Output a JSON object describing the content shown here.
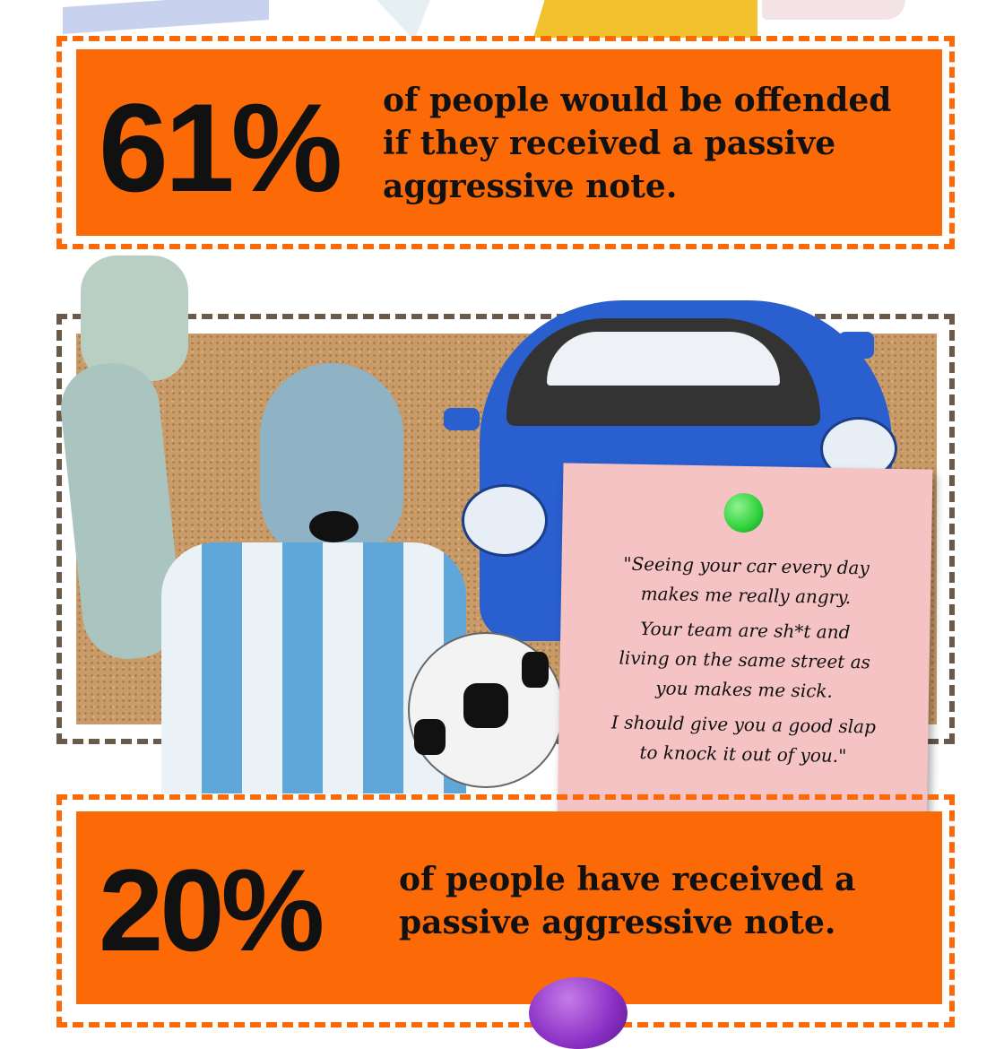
{
  "stats": [
    {
      "percent": "61%",
      "text_lines": [
        "of people would be offended",
        "if they received a passive",
        "aggressive note."
      ]
    },
    {
      "percent": "20%",
      "text_lines": [
        "of people have received a",
        "passive aggressive note."
      ]
    }
  ],
  "note": {
    "paragraphs": [
      [
        "\"Seeing your car every day",
        "makes me really angry."
      ],
      [
        "Your team are sh*t and",
        "living on the same street as",
        "you makes me sick."
      ],
      [
        "I should give you a good slap",
        "to knock it out of you.\""
      ]
    ]
  },
  "colors": {
    "orange": "#fb6a06",
    "frame_brown": "#6b5a4a",
    "note_pink": "#f6c3c4",
    "pin_green": "#2fd13a",
    "car_blue": "#2a5fd0"
  }
}
